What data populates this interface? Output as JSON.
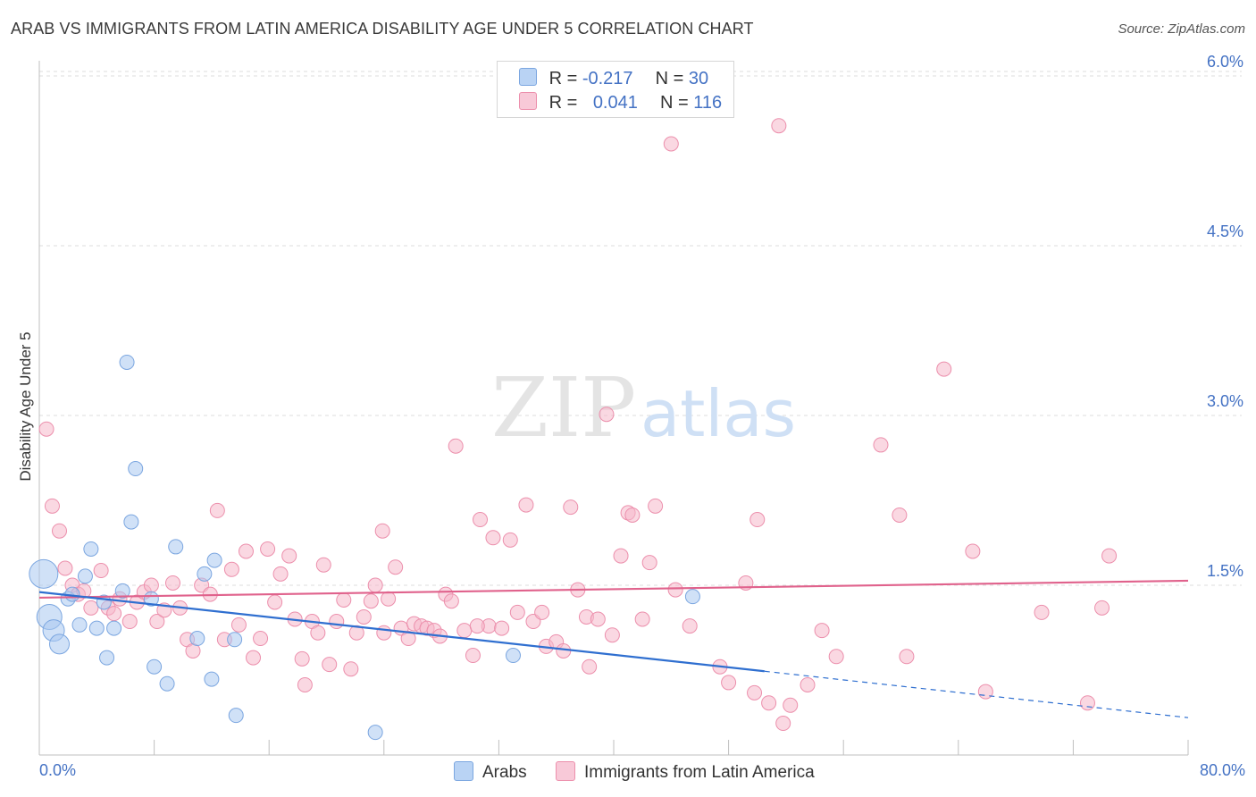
{
  "title": "ARAB VS IMMIGRANTS FROM LATIN AMERICA DISABILITY AGE UNDER 5 CORRELATION CHART",
  "source": "Source: ZipAtlas.com",
  "watermark": {
    "zip": "ZIP",
    "atlas": "atlas"
  },
  "legend": {
    "arabs": {
      "r_label": "R =",
      "r_value": "-0.217",
      "n_label": "N =",
      "n_value": "30"
    },
    "latin": {
      "r_label": "R =",
      "r_value": "0.041",
      "n_label": "N =",
      "n_value": "116"
    }
  },
  "bottom_legend": {
    "arabs": "Arabs",
    "latin": "Immigrants from Latin America"
  },
  "chart_data": {
    "type": "scatter",
    "ylabel": "Disability Age Under 5",
    "x_tick_labels": {
      "min": "0.0%",
      "max": "80.0%"
    },
    "y_ticks": [
      {
        "value": 1.5,
        "label": "1.5%"
      },
      {
        "value": 3.0,
        "label": "3.0%"
      },
      {
        "value": 4.5,
        "label": "4.5%"
      },
      {
        "value": 6.0,
        "label": "6.0%"
      }
    ],
    "xlim": [
      0,
      80
    ],
    "ylim": [
      0,
      6.2
    ],
    "colors": {
      "arabs_fill": "#a9c8f0",
      "arabs_stroke": "#7ba6e0",
      "arabs_line": "#2f6fd0",
      "latin_fill": "#f5b8cb",
      "latin_stroke": "#ec8fac",
      "latin_line": "#e0628c"
    },
    "series": [
      {
        "name": "Arabs",
        "points": [
          {
            "x": 0.3,
            "y": 1.6,
            "s": 16
          },
          {
            "x": 0.7,
            "y": 1.22,
            "s": 14
          },
          {
            "x": 1.0,
            "y": 1.1,
            "s": 12
          },
          {
            "x": 1.4,
            "y": 0.98,
            "s": 11
          },
          {
            "x": 2.0,
            "y": 1.38,
            "s": 8
          },
          {
            "x": 2.3,
            "y": 1.42,
            "s": 8
          },
          {
            "x": 2.8,
            "y": 1.15,
            "s": 8
          },
          {
            "x": 3.2,
            "y": 1.58,
            "s": 8
          },
          {
            "x": 3.6,
            "y": 1.82,
            "s": 8
          },
          {
            "x": 4.0,
            "y": 1.12,
            "s": 8
          },
          {
            "x": 4.5,
            "y": 1.35,
            "s": 8
          },
          {
            "x": 4.7,
            "y": 0.86,
            "s": 8
          },
          {
            "x": 5.2,
            "y": 1.12,
            "s": 8
          },
          {
            "x": 5.8,
            "y": 1.45,
            "s": 8
          },
          {
            "x": 6.1,
            "y": 3.47,
            "s": 8
          },
          {
            "x": 6.4,
            "y": 2.06,
            "s": 8
          },
          {
            "x": 6.7,
            "y": 2.53,
            "s": 8
          },
          {
            "x": 7.8,
            "y": 1.38,
            "s": 8
          },
          {
            "x": 8.0,
            "y": 0.78,
            "s": 8
          },
          {
            "x": 8.9,
            "y": 0.63,
            "s": 8
          },
          {
            "x": 9.5,
            "y": 1.84,
            "s": 8
          },
          {
            "x": 11.0,
            "y": 1.03,
            "s": 8
          },
          {
            "x": 11.5,
            "y": 1.6,
            "s": 8
          },
          {
            "x": 12.0,
            "y": 0.67,
            "s": 8
          },
          {
            "x": 12.2,
            "y": 1.72,
            "s": 8
          },
          {
            "x": 13.6,
            "y": 1.02,
            "s": 8
          },
          {
            "x": 13.7,
            "y": 0.35,
            "s": 8
          },
          {
            "x": 23.4,
            "y": 0.2,
            "s": 8
          },
          {
            "x": 33.0,
            "y": 0.88,
            "s": 8
          },
          {
            "x": 45.5,
            "y": 1.4,
            "s": 8
          }
        ],
        "trend": {
          "x_start": 0,
          "y_start": 1.44,
          "x_solid_end": 50.5,
          "y_solid_end": 0.74,
          "x_end": 80,
          "y_end": 0.33
        }
      },
      {
        "name": "Immigrants from Latin America",
        "points": [
          {
            "x": 0.5,
            "y": 2.88
          },
          {
            "x": 0.9,
            "y": 2.2
          },
          {
            "x": 1.4,
            "y": 1.98
          },
          {
            "x": 1.8,
            "y": 1.65
          },
          {
            "x": 2.3,
            "y": 1.5
          },
          {
            "x": 2.7,
            "y": 1.42
          },
          {
            "x": 3.1,
            "y": 1.45
          },
          {
            "x": 3.6,
            "y": 1.3
          },
          {
            "x": 4.3,
            "y": 1.63
          },
          {
            "x": 4.8,
            "y": 1.3
          },
          {
            "x": 5.2,
            "y": 1.25
          },
          {
            "x": 5.6,
            "y": 1.38
          },
          {
            "x": 6.3,
            "y": 1.18
          },
          {
            "x": 6.8,
            "y": 1.35
          },
          {
            "x": 7.3,
            "y": 1.44
          },
          {
            "x": 7.8,
            "y": 1.5
          },
          {
            "x": 8.2,
            "y": 1.18
          },
          {
            "x": 8.7,
            "y": 1.28
          },
          {
            "x": 9.3,
            "y": 1.52
          },
          {
            "x": 9.8,
            "y": 1.3
          },
          {
            "x": 10.3,
            "y": 1.02
          },
          {
            "x": 10.7,
            "y": 0.92
          },
          {
            "x": 11.3,
            "y": 1.5
          },
          {
            "x": 11.9,
            "y": 1.42
          },
          {
            "x": 12.4,
            "y": 2.16
          },
          {
            "x": 12.9,
            "y": 1.02
          },
          {
            "x": 13.4,
            "y": 1.64
          },
          {
            "x": 13.9,
            "y": 1.15
          },
          {
            "x": 14.4,
            "y": 1.8
          },
          {
            "x": 14.9,
            "y": 0.86
          },
          {
            "x": 15.4,
            "y": 1.03
          },
          {
            "x": 15.9,
            "y": 1.82
          },
          {
            "x": 16.4,
            "y": 1.35
          },
          {
            "x": 16.8,
            "y": 1.6
          },
          {
            "x": 17.4,
            "y": 1.76
          },
          {
            "x": 17.8,
            "y": 1.2
          },
          {
            "x": 18.3,
            "y": 0.85
          },
          {
            "x": 18.5,
            "y": 0.62
          },
          {
            "x": 19.0,
            "y": 1.18
          },
          {
            "x": 19.4,
            "y": 1.08
          },
          {
            "x": 19.8,
            "y": 1.68
          },
          {
            "x": 20.2,
            "y": 0.8
          },
          {
            "x": 20.7,
            "y": 1.18
          },
          {
            "x": 21.2,
            "y": 1.37
          },
          {
            "x": 21.7,
            "y": 0.76
          },
          {
            "x": 22.1,
            "y": 1.08
          },
          {
            "x": 22.6,
            "y": 1.22
          },
          {
            "x": 23.1,
            "y": 1.36
          },
          {
            "x": 23.4,
            "y": 1.5
          },
          {
            "x": 23.9,
            "y": 1.98
          },
          {
            "x": 24.3,
            "y": 1.38
          },
          {
            "x": 24.8,
            "y": 1.66
          },
          {
            "x": 25.2,
            "y": 1.12
          },
          {
            "x": 25.7,
            "y": 1.03
          },
          {
            "x": 26.1,
            "y": 1.16
          },
          {
            "x": 26.6,
            "y": 1.14
          },
          {
            "x": 27.0,
            "y": 1.12
          },
          {
            "x": 27.5,
            "y": 1.1
          },
          {
            "x": 27.9,
            "y": 1.05
          },
          {
            "x": 28.3,
            "y": 1.42
          },
          {
            "x": 28.7,
            "y": 1.36
          },
          {
            "x": 29.0,
            "y": 2.73
          },
          {
            "x": 29.6,
            "y": 1.1
          },
          {
            "x": 30.2,
            "y": 0.88
          },
          {
            "x": 30.7,
            "y": 2.08
          },
          {
            "x": 31.3,
            "y": 1.14
          },
          {
            "x": 31.6,
            "y": 1.92
          },
          {
            "x": 32.2,
            "y": 1.12
          },
          {
            "x": 32.8,
            "y": 1.9
          },
          {
            "x": 33.3,
            "y": 1.26
          },
          {
            "x": 33.9,
            "y": 2.21
          },
          {
            "x": 34.4,
            "y": 1.18
          },
          {
            "x": 35.0,
            "y": 1.26
          },
          {
            "x": 35.3,
            "y": 0.96
          },
          {
            "x": 36.0,
            "y": 1.0
          },
          {
            "x": 36.5,
            "y": 0.92
          },
          {
            "x": 37.0,
            "y": 2.19
          },
          {
            "x": 37.5,
            "y": 1.46
          },
          {
            "x": 38.1,
            "y": 1.22
          },
          {
            "x": 38.3,
            "y": 0.78
          },
          {
            "x": 38.9,
            "y": 1.2
          },
          {
            "x": 39.5,
            "y": 3.01
          },
          {
            "x": 39.9,
            "y": 1.06
          },
          {
            "x": 40.5,
            "y": 1.76
          },
          {
            "x": 41.0,
            "y": 2.14
          },
          {
            "x": 41.3,
            "y": 2.12
          },
          {
            "x": 42.0,
            "y": 1.2
          },
          {
            "x": 42.5,
            "y": 1.7
          },
          {
            "x": 42.9,
            "y": 2.2
          },
          {
            "x": 44.0,
            "y": 5.4
          },
          {
            "x": 44.3,
            "y": 1.46
          },
          {
            "x": 45.3,
            "y": 1.14
          },
          {
            "x": 47.4,
            "y": 0.78
          },
          {
            "x": 48.0,
            "y": 0.64
          },
          {
            "x": 49.2,
            "y": 1.52
          },
          {
            "x": 50.0,
            "y": 2.08
          },
          {
            "x": 49.8,
            "y": 0.55
          },
          {
            "x": 50.8,
            "y": 0.46
          },
          {
            "x": 51.5,
            "y": 5.56
          },
          {
            "x": 51.8,
            "y": 0.28
          },
          {
            "x": 52.3,
            "y": 0.44
          },
          {
            "x": 53.5,
            "y": 0.62
          },
          {
            "x": 54.5,
            "y": 1.1
          },
          {
            "x": 55.5,
            "y": 0.87
          },
          {
            "x": 58.6,
            "y": 2.74
          },
          {
            "x": 59.9,
            "y": 2.12
          },
          {
            "x": 60.4,
            "y": 0.87
          },
          {
            "x": 63.0,
            "y": 3.41
          },
          {
            "x": 65.0,
            "y": 1.8
          },
          {
            "x": 65.9,
            "y": 0.56
          },
          {
            "x": 69.8,
            "y": 1.26
          },
          {
            "x": 73.0,
            "y": 0.46
          },
          {
            "x": 74.0,
            "y": 1.3
          },
          {
            "x": 74.5,
            "y": 1.76
          },
          {
            "x": 30.5,
            "y": 1.14
          },
          {
            "x": 24.0,
            "y": 1.08
          }
        ],
        "trend": {
          "x_start": 0,
          "y_start": 1.39,
          "x_end": 80,
          "y_end": 1.54
        }
      }
    ]
  }
}
